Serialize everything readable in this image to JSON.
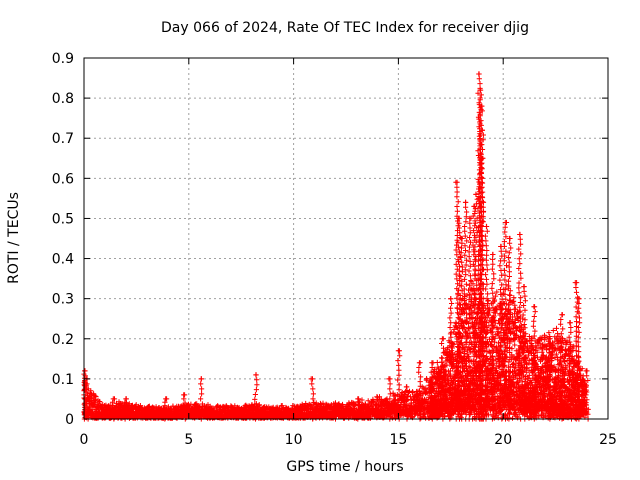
{
  "chart_data": {
    "type": "scatter",
    "title": "Day 066 of 2024, Rate Of TEC Index for receiver djig",
    "xlabel": "GPS time / hours",
    "ylabel": "ROTI / TECUs",
    "xlim": [
      0,
      25
    ],
    "ylim": [
      0,
      0.9
    ],
    "xticks": [
      0,
      5,
      10,
      15,
      20,
      25
    ],
    "yticks": [
      0,
      0.1,
      0.2,
      0.3,
      0.4,
      0.5,
      0.6,
      0.7,
      0.8,
      0.9
    ],
    "xtick_labels": [
      "0",
      "5",
      "10",
      "15",
      "20",
      "25"
    ],
    "ytick_labels": [
      "0",
      "0.1",
      "0.2",
      "0.3",
      "0.4",
      "0.5",
      "0.6",
      "0.7",
      "0.8",
      "0.9"
    ],
    "grid": true,
    "marker": "+",
    "color": "#ff0000",
    "series": [
      {
        "name": "ROTI",
        "profile": [
          [
            0.0,
            0.015,
            0.11
          ],
          [
            0.3,
            0.01,
            0.07
          ],
          [
            1.0,
            0.01,
            0.03
          ],
          [
            1.5,
            0.01,
            0.04
          ],
          [
            2.0,
            0.01,
            0.04
          ],
          [
            3.0,
            0.008,
            0.03
          ],
          [
            4.0,
            0.008,
            0.03
          ],
          [
            5.0,
            0.01,
            0.035
          ],
          [
            6.0,
            0.01,
            0.035
          ],
          [
            7.0,
            0.01,
            0.03
          ],
          [
            8.0,
            0.01,
            0.035
          ],
          [
            9.0,
            0.01,
            0.03
          ],
          [
            10.0,
            0.01,
            0.03
          ],
          [
            11.0,
            0.012,
            0.04
          ],
          [
            12.0,
            0.012,
            0.035
          ],
          [
            13.0,
            0.015,
            0.04
          ],
          [
            14.0,
            0.018,
            0.05
          ],
          [
            15.0,
            0.02,
            0.06
          ],
          [
            16.0,
            0.025,
            0.07
          ],
          [
            16.5,
            0.03,
            0.1
          ],
          [
            17.0,
            0.035,
            0.14
          ],
          [
            17.5,
            0.04,
            0.2
          ],
          [
            18.0,
            0.05,
            0.3
          ],
          [
            18.5,
            0.05,
            0.32
          ],
          [
            19.0,
            0.05,
            0.3
          ],
          [
            19.5,
            0.05,
            0.28
          ],
          [
            20.0,
            0.05,
            0.33
          ],
          [
            20.5,
            0.05,
            0.3
          ],
          [
            21.0,
            0.04,
            0.22
          ],
          [
            21.5,
            0.04,
            0.2
          ],
          [
            22.0,
            0.035,
            0.2
          ],
          [
            22.5,
            0.03,
            0.22
          ],
          [
            23.0,
            0.03,
            0.2
          ],
          [
            23.5,
            0.025,
            0.17
          ],
          [
            24.0,
            0.02,
            0.08
          ]
        ],
        "spikes": [
          [
            0.05,
            0.12
          ],
          [
            0.15,
            0.1
          ],
          [
            1.4,
            0.05
          ],
          [
            2.0,
            0.05
          ],
          [
            3.9,
            0.05
          ],
          [
            4.8,
            0.06
          ],
          [
            5.6,
            0.1
          ],
          [
            8.2,
            0.11
          ],
          [
            10.9,
            0.1
          ],
          [
            12.0,
            0.04
          ],
          [
            13.1,
            0.05
          ],
          [
            14.6,
            0.1
          ],
          [
            15.0,
            0.17
          ],
          [
            15.4,
            0.08
          ],
          [
            16.0,
            0.14
          ],
          [
            16.6,
            0.14
          ],
          [
            17.1,
            0.2
          ],
          [
            17.5,
            0.3
          ],
          [
            17.8,
            0.59
          ],
          [
            17.9,
            0.5
          ],
          [
            18.0,
            0.45
          ],
          [
            18.2,
            0.54
          ],
          [
            18.4,
            0.5
          ],
          [
            18.6,
            0.53
          ],
          [
            18.7,
            0.56
          ],
          [
            18.85,
            0.86
          ],
          [
            18.9,
            0.82
          ],
          [
            18.95,
            0.78
          ],
          [
            19.0,
            0.72
          ],
          [
            19.0,
            0.65
          ],
          [
            19.2,
            0.48
          ],
          [
            19.5,
            0.41
          ],
          [
            19.9,
            0.43
          ],
          [
            20.1,
            0.49
          ],
          [
            20.3,
            0.45
          ],
          [
            20.8,
            0.46
          ],
          [
            21.0,
            0.33
          ],
          [
            21.5,
            0.28
          ],
          [
            22.2,
            0.2
          ],
          [
            22.8,
            0.26
          ],
          [
            23.2,
            0.24
          ],
          [
            23.5,
            0.34
          ],
          [
            23.6,
            0.3
          ],
          [
            24.0,
            0.12
          ]
        ]
      }
    ]
  }
}
